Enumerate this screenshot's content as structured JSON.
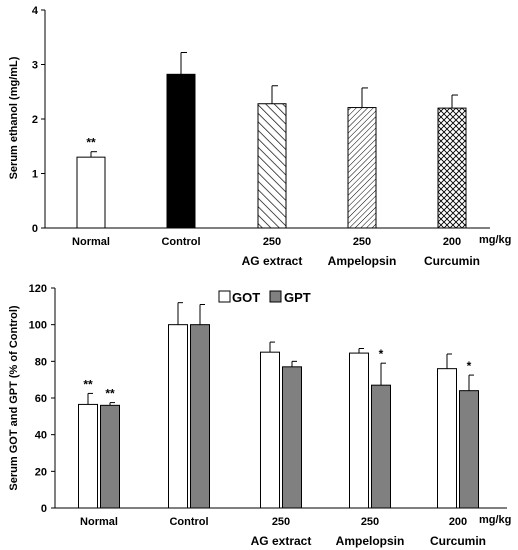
{
  "chart_data": [
    {
      "type": "bar",
      "ylabel": "Serum ethanol (mg/mL)",
      "ylim": [
        0,
        4
      ],
      "yticks": [
        "0",
        "1",
        "2",
        "3",
        "4"
      ],
      "categories": [
        "Normal",
        "Control",
        "250",
        "250",
        "200"
      ],
      "category_subtitles": [
        "",
        "",
        "AG extract",
        "Ampelopsin",
        "Curcumin"
      ],
      "unit_label": "mg/kg",
      "series": [
        {
          "values": [
            1.3,
            2.82,
            2.28,
            2.21,
            2.2
          ],
          "errors": [
            0.1,
            0.4,
            0.33,
            0.36,
            0.24
          ],
          "fills": [
            "white",
            "black",
            "diagonal-hatch",
            "dense-diagonal-hatch",
            "crosshatch"
          ],
          "significance": [
            "**",
            "",
            "",
            "",
            ""
          ]
        }
      ],
      "grid": false
    },
    {
      "type": "bar",
      "ylabel": "Serum GOT and GPT (% of Control)",
      "ylim": [
        0,
        120
      ],
      "yticks": [
        "0",
        "20",
        "40",
        "60",
        "80",
        "100",
        "120"
      ],
      "categories": [
        "Normal",
        "Control",
        "250",
        "250",
        "200"
      ],
      "category_subtitles": [
        "",
        "",
        "AG extract",
        "Ampelopsin",
        "Curcumin"
      ],
      "unit_label": "mg/kg",
      "legend_position": "top-center",
      "series": [
        {
          "name": "GOT",
          "color": "#ffffff",
          "values": [
            56.5,
            100,
            85,
            84.5,
            76
          ],
          "errors": [
            6,
            12,
            5.5,
            2.5,
            8
          ],
          "significance": [
            "**",
            "",
            "",
            "",
            ""
          ]
        },
        {
          "name": "GPT",
          "color": "#808080",
          "values": [
            56,
            100,
            77,
            67,
            64
          ],
          "errors": [
            1.5,
            11,
            3,
            12,
            8.5
          ],
          "significance": [
            "**",
            "",
            "",
            "*",
            "*"
          ]
        }
      ],
      "grid": false
    }
  ]
}
